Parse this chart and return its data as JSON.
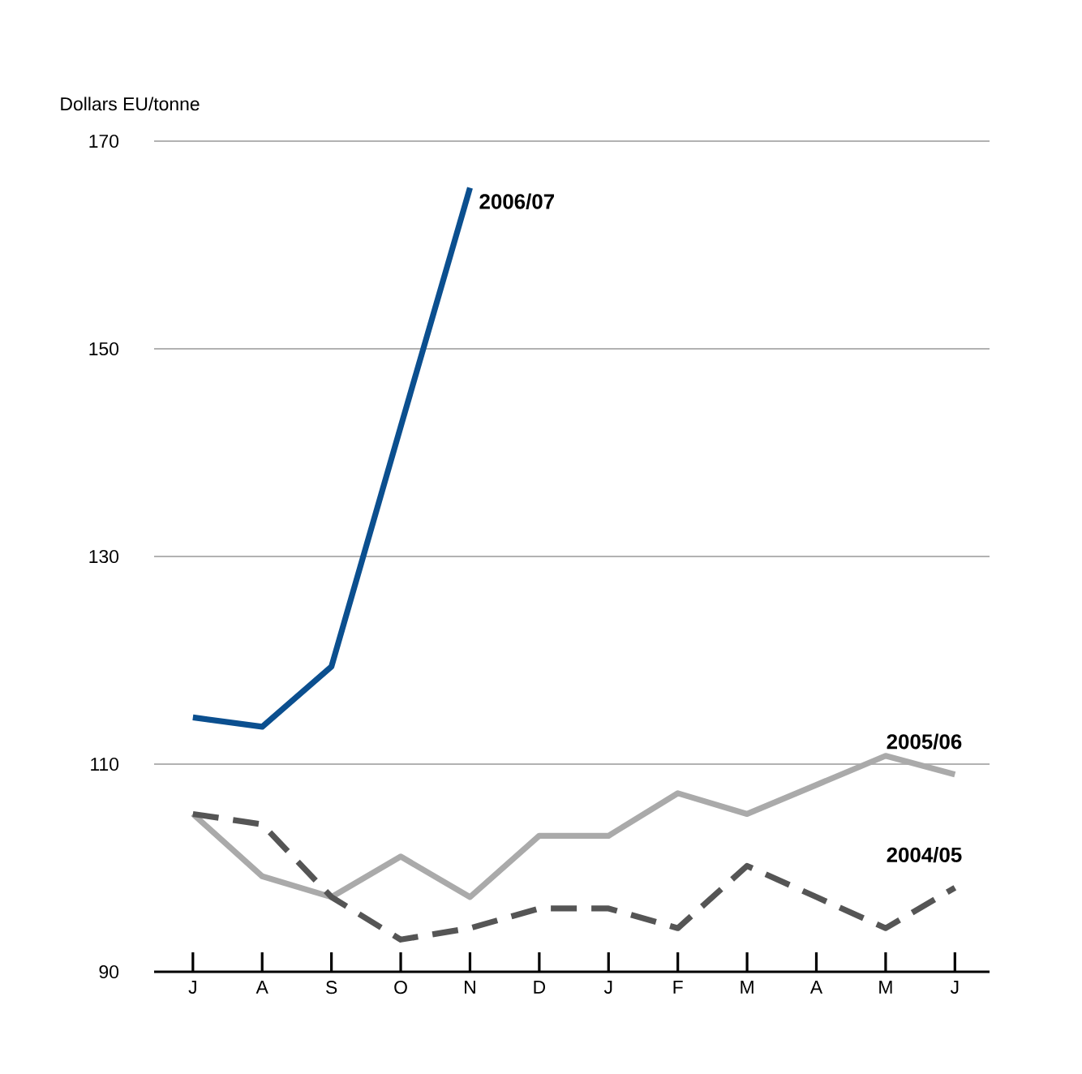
{
  "chart_data": {
    "type": "line",
    "ylabel": "Dollars EU/tonne",
    "categories": [
      "J",
      "A",
      "S",
      "O",
      "N",
      "D",
      "J",
      "F",
      "M",
      "A",
      "M",
      "J"
    ],
    "series": [
      {
        "name": "2006/07",
        "color": "#0b4f8f",
        "values": [
          114.5,
          113.6,
          119.4,
          142.5,
          165.5,
          null,
          null,
          null,
          null,
          null,
          null,
          null
        ]
      },
      {
        "name": "2005/06",
        "color": "#aaaaaa",
        "values": [
          105.2,
          99.2,
          97.2,
          101.1,
          97.2,
          103.1,
          103.1,
          107.2,
          105.2,
          108,
          110.8,
          109
        ]
      },
      {
        "name": "2004/05",
        "color": "#555555",
        "line_style": "dashed",
        "values": [
          105.2,
          104.2,
          97.2,
          93.1,
          94.2,
          96.1,
          96.1,
          94.2,
          100.2,
          97.2,
          94.2,
          98.1
        ]
      }
    ],
    "ylim": [
      90,
      170
    ],
    "yticks": [
      90,
      110,
      130,
      150,
      170
    ],
    "grid": "y",
    "marker": "none"
  }
}
